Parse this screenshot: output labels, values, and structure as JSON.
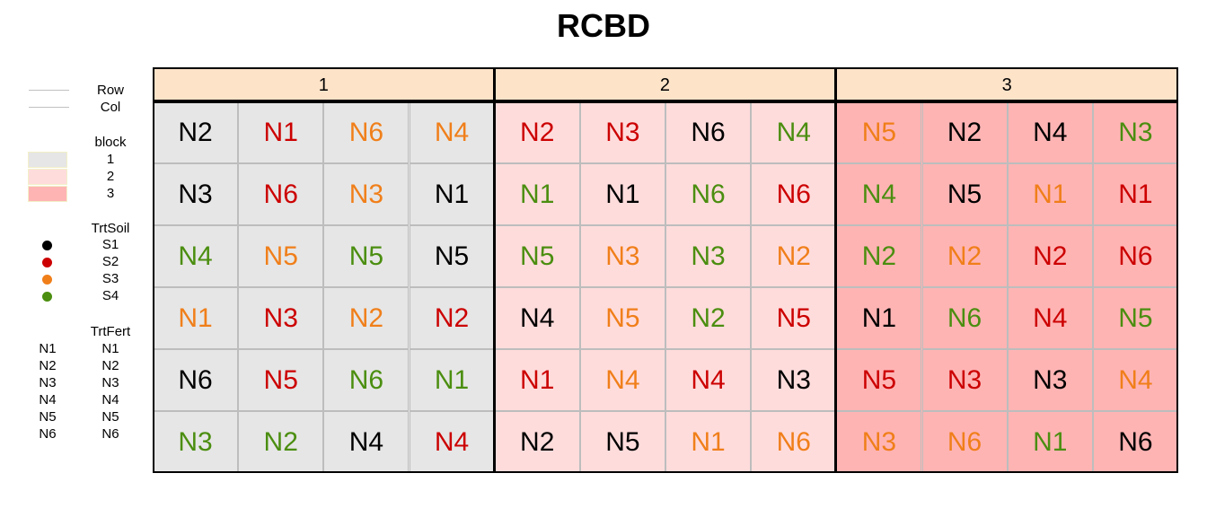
{
  "title": "RCBD",
  "colors": {
    "block_fill": [
      "#e6e6e6",
      "#ffdcdc",
      "#ffb4b4"
    ],
    "header_fill": "#fde3c8",
    "soil": {
      "S1": "#000000",
      "S2": "#cc0000",
      "S3": "#f07f1a",
      "S4": "#4b8e10"
    },
    "line": "#c0c0c0"
  },
  "legend": {
    "lines": [
      "Row",
      "Col"
    ],
    "block_title": "block",
    "blocks": [
      "1",
      "2",
      "3"
    ],
    "soil_title": "TrtSoil",
    "soils": [
      "S1",
      "S2",
      "S3",
      "S4"
    ],
    "fert_title": "TrtFert",
    "fert_keys": [
      "N1",
      "N2",
      "N3",
      "N4",
      "N5",
      "N6"
    ],
    "fert_labels": [
      "N1",
      "N2",
      "N3",
      "N4",
      "N5",
      "N6"
    ]
  },
  "chart_data": {
    "type": "table",
    "blocks": [
      {
        "label": "1",
        "rows": [
          [
            {
              "f": "N2",
              "s": "S1"
            },
            {
              "f": "N1",
              "s": "S2"
            },
            {
              "f": "N6",
              "s": "S3"
            },
            {
              "f": "N4",
              "s": "S3"
            }
          ],
          [
            {
              "f": "N3",
              "s": "S1"
            },
            {
              "f": "N6",
              "s": "S2"
            },
            {
              "f": "N3",
              "s": "S3"
            },
            {
              "f": "N1",
              "s": "S1"
            }
          ],
          [
            {
              "f": "N4",
              "s": "S4"
            },
            {
              "f": "N5",
              "s": "S3"
            },
            {
              "f": "N5",
              "s": "S4"
            },
            {
              "f": "N5",
              "s": "S1"
            }
          ],
          [
            {
              "f": "N1",
              "s": "S3"
            },
            {
              "f": "N3",
              "s": "S2"
            },
            {
              "f": "N2",
              "s": "S3"
            },
            {
              "f": "N2",
              "s": "S2"
            }
          ],
          [
            {
              "f": "N6",
              "s": "S1"
            },
            {
              "f": "N5",
              "s": "S2"
            },
            {
              "f": "N6",
              "s": "S4"
            },
            {
              "f": "N1",
              "s": "S4"
            }
          ],
          [
            {
              "f": "N3",
              "s": "S4"
            },
            {
              "f": "N2",
              "s": "S4"
            },
            {
              "f": "N4",
              "s": "S1"
            },
            {
              "f": "N4",
              "s": "S2"
            }
          ]
        ]
      },
      {
        "label": "2",
        "rows": [
          [
            {
              "f": "N2",
              "s": "S2"
            },
            {
              "f": "N3",
              "s": "S2"
            },
            {
              "f": "N6",
              "s": "S1"
            },
            {
              "f": "N4",
              "s": "S4"
            }
          ],
          [
            {
              "f": "N1",
              "s": "S4"
            },
            {
              "f": "N1",
              "s": "S1"
            },
            {
              "f": "N6",
              "s": "S4"
            },
            {
              "f": "N6",
              "s": "S2"
            }
          ],
          [
            {
              "f": "N5",
              "s": "S4"
            },
            {
              "f": "N3",
              "s": "S3"
            },
            {
              "f": "N3",
              "s": "S4"
            },
            {
              "f": "N2",
              "s": "S3"
            }
          ],
          [
            {
              "f": "N4",
              "s": "S1"
            },
            {
              "f": "N5",
              "s": "S3"
            },
            {
              "f": "N2",
              "s": "S4"
            },
            {
              "f": "N5",
              "s": "S2"
            }
          ],
          [
            {
              "f": "N1",
              "s": "S2"
            },
            {
              "f": "N4",
              "s": "S3"
            },
            {
              "f": "N4",
              "s": "S2"
            },
            {
              "f": "N3",
              "s": "S1"
            }
          ],
          [
            {
              "f": "N2",
              "s": "S1"
            },
            {
              "f": "N5",
              "s": "S1"
            },
            {
              "f": "N1",
              "s": "S3"
            },
            {
              "f": "N6",
              "s": "S3"
            }
          ]
        ]
      },
      {
        "label": "3",
        "rows": [
          [
            {
              "f": "N5",
              "s": "S3"
            },
            {
              "f": "N2",
              "s": "S1"
            },
            {
              "f": "N4",
              "s": "S1"
            },
            {
              "f": "N3",
              "s": "S4"
            }
          ],
          [
            {
              "f": "N4",
              "s": "S4"
            },
            {
              "f": "N5",
              "s": "S1"
            },
            {
              "f": "N1",
              "s": "S3"
            },
            {
              "f": "N1",
              "s": "S2"
            }
          ],
          [
            {
              "f": "N2",
              "s": "S4"
            },
            {
              "f": "N2",
              "s": "S3"
            },
            {
              "f": "N2",
              "s": "S2"
            },
            {
              "f": "N6",
              "s": "S2"
            }
          ],
          [
            {
              "f": "N1",
              "s": "S1"
            },
            {
              "f": "N6",
              "s": "S4"
            },
            {
              "f": "N4",
              "s": "S2"
            },
            {
              "f": "N5",
              "s": "S4"
            }
          ],
          [
            {
              "f": "N5",
              "s": "S2"
            },
            {
              "f": "N3",
              "s": "S2"
            },
            {
              "f": "N3",
              "s": "S1"
            },
            {
              "f": "N4",
              "s": "S3"
            }
          ],
          [
            {
              "f": "N3",
              "s": "S3"
            },
            {
              "f": "N6",
              "s": "S3"
            },
            {
              "f": "N1",
              "s": "S4"
            },
            {
              "f": "N6",
              "s": "S1"
            }
          ]
        ]
      }
    ]
  }
}
